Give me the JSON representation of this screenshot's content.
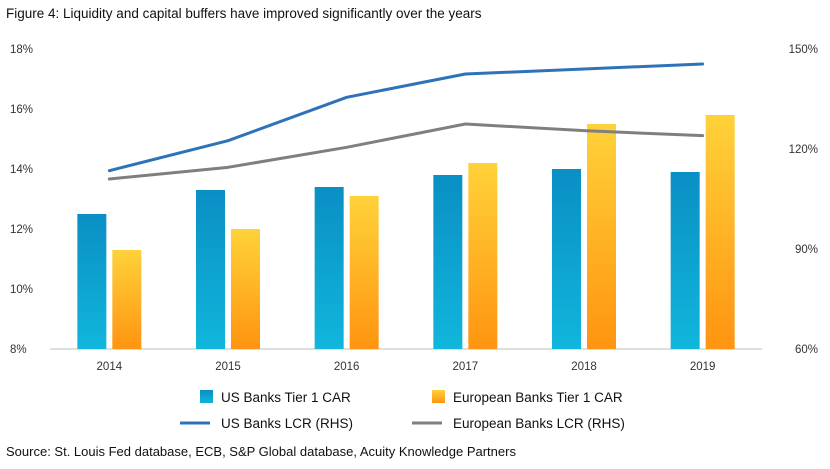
{
  "title": "Figure 4: Liquidity and capital buffers have improved significantly over the years",
  "source": "Source: St. Louis Fed database, ECB, S&P Global database, Acuity Knowledge Partners",
  "colors": {
    "us_bar_top": "#0a8fc4",
    "us_bar_bottom": "#10b6dc",
    "eu_bar_top": "#ffd23a",
    "eu_bar_bottom": "#ff9410",
    "us_line": "#2e73b8",
    "eu_line": "#7f7f7f",
    "axis": "#bfbfbf"
  },
  "chart_data": {
    "type": "bar",
    "categories": [
      "2014",
      "2015",
      "2016",
      "2017",
      "2018",
      "2019"
    ],
    "series": [
      {
        "name": "US Banks Tier 1 CAR",
        "type": "bar",
        "axis": "left",
        "values": [
          12.5,
          13.3,
          13.4,
          13.8,
          14.0,
          13.9
        ]
      },
      {
        "name": "European Banks Tier 1 CAR",
        "type": "bar",
        "axis": "left",
        "values": [
          11.3,
          12.0,
          13.1,
          14.2,
          15.5,
          15.8
        ]
      },
      {
        "name": "US Banks LCR (RHS)",
        "type": "line",
        "axis": "right",
        "values": [
          113.5,
          122.5,
          135.5,
          142.5,
          144.0,
          145.5
        ]
      },
      {
        "name": "European Banks LCR (RHS)",
        "type": "line",
        "axis": "right",
        "values": [
          111.0,
          114.5,
          120.5,
          127.5,
          125.5,
          124.0
        ]
      }
    ],
    "ylim": [
      8,
      18
    ],
    "yticks": [
      "8%",
      "10%",
      "12%",
      "14%",
      "16%",
      "18%"
    ],
    "y2lim": [
      60,
      150
    ],
    "y2ticks": [
      "60%",
      "90%",
      "120%",
      "150%"
    ],
    "legend": [
      {
        "label": "US Banks Tier 1 CAR",
        "kind": "bar",
        "color": "#10a6d2"
      },
      {
        "label": "European Banks Tier 1 CAR",
        "kind": "bar",
        "color": "#ffb020"
      },
      {
        "label": "US Banks LCR (RHS)",
        "kind": "line",
        "color": "#2e73b8"
      },
      {
        "label": "European Banks LCR (RHS)",
        "kind": "line",
        "color": "#7f7f7f"
      }
    ],
    "legend_position": "bottom"
  }
}
